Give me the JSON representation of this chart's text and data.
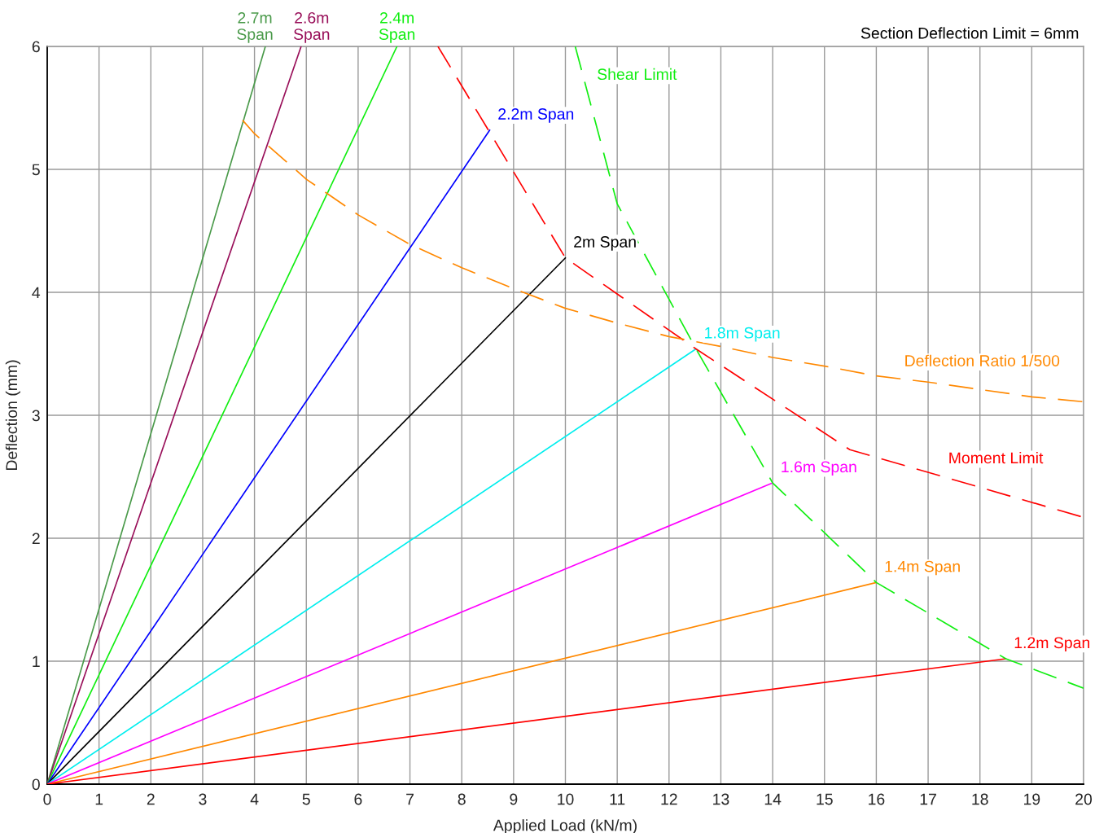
{
  "chart_data": {
    "type": "line",
    "xlabel": "Applied Load (kN/m)",
    "ylabel": "Deflection (mm)",
    "xlim": [
      0,
      20
    ],
    "ylim": [
      0,
      6
    ],
    "xticks": [
      0,
      1,
      2,
      3,
      4,
      5,
      6,
      7,
      8,
      9,
      10,
      11,
      12,
      13,
      14,
      15,
      16,
      17,
      18,
      19,
      20
    ],
    "yticks": [
      0,
      1,
      2,
      3,
      4,
      5,
      6
    ],
    "grid": true,
    "line_style": "solid",
    "annotations": [
      "Section Deflection Limit = 6mm",
      {
        "text": "Shear Limit",
        "x": 10.42,
        "y": 5.63
      },
      {
        "text": "Deflection Ratio 1/500",
        "x": 16.35,
        "y": 3.3
      },
      {
        "text": "Moment Limit",
        "x": 17.2,
        "y": 2.51
      }
    ],
    "series": [
      {
        "name": "2.7m Span",
        "color": "#4a9a4a",
        "x": [
          0,
          4.21
        ],
        "values": [
          0,
          6.0
        ]
      },
      {
        "name": "2.6m Span",
        "color": "#99105a",
        "x": [
          0,
          4.9
        ],
        "values": [
          0,
          6.0
        ]
      },
      {
        "name": "2.4m Span",
        "color": "#11ee11",
        "x": [
          0,
          6.75
        ],
        "values": [
          0,
          6.0
        ]
      },
      {
        "name": "2.2m Span",
        "color": "#0000ff",
        "x": [
          0,
          8.54
        ],
        "values": [
          0,
          5.32
        ]
      },
      {
        "name": "2m Span",
        "color": "#000000",
        "x": [
          0,
          10.0
        ],
        "values": [
          0,
          4.28
        ]
      },
      {
        "name": "1.8m Span",
        "color": "#00eeee",
        "x": [
          0,
          12.52
        ],
        "values": [
          0,
          3.54
        ]
      },
      {
        "name": "1.6m Span",
        "color": "#ff00ff",
        "x": [
          0,
          14.0
        ],
        "values": [
          0,
          2.45
        ]
      },
      {
        "name": "1.4m Span",
        "color": "#ff8800",
        "x": [
          0,
          16.0
        ],
        "values": [
          0,
          1.64
        ]
      },
      {
        "name": "1.2m Span",
        "color": "#ff0000",
        "x": [
          0,
          18.5
        ],
        "values": [
          0,
          1.02
        ]
      },
      {
        "color": "#11ee11",
        "line_style": "dashed",
        "x": [
          10.19,
          11.0,
          12.52,
          14.0,
          16.0,
          18.5,
          20
        ],
        "values": [
          6.0,
          4.72,
          3.54,
          2.45,
          1.64,
          1.02,
          0.78
        ]
      },
      {
        "color": "#ff0000",
        "line_style": "dashed",
        "x": [
          7.54,
          10.0,
          12.52,
          15.49,
          20
        ],
        "values": [
          6.0,
          4.28,
          3.54,
          2.72,
          2.17
        ]
      },
      {
        "color": "#ff8800",
        "line_style": "dashed",
        "x": [
          3.77,
          4,
          5,
          6,
          7,
          8,
          9,
          10,
          11,
          12,
          13,
          14,
          15,
          16,
          17,
          18,
          19,
          20
        ],
        "values": [
          5.4,
          5.29,
          4.92,
          4.63,
          4.39,
          4.2,
          4.03,
          3.87,
          3.75,
          3.64,
          3.56,
          3.47,
          3.4,
          3.32,
          3.27,
          3.21,
          3.15,
          3.11
        ]
      }
    ]
  }
}
